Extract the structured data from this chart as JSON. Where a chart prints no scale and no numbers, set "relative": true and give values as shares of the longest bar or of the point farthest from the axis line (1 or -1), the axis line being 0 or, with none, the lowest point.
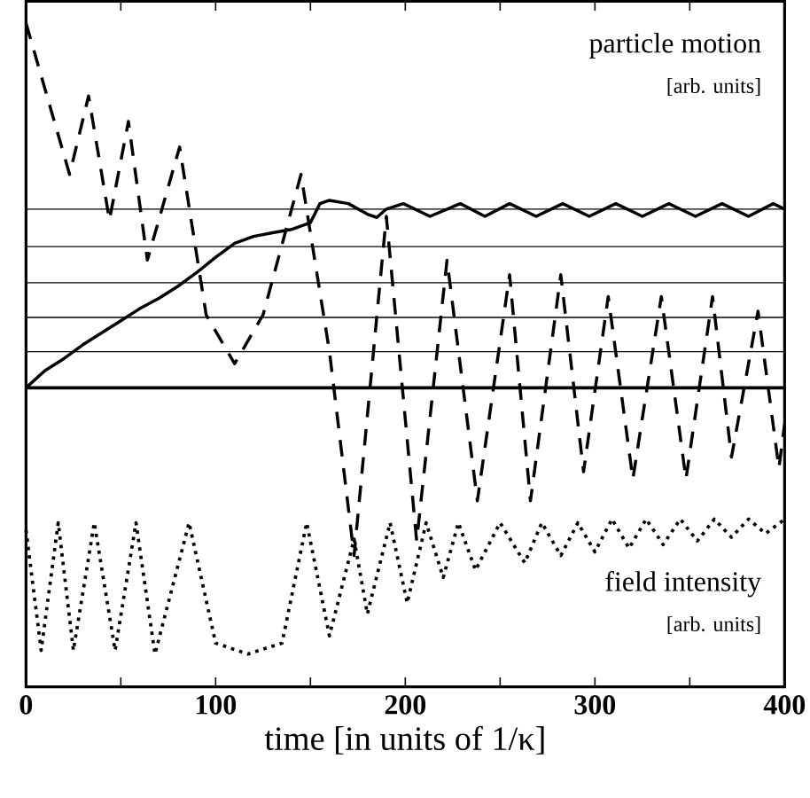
{
  "chart_data": {
    "type": "line",
    "relative": true,
    "xlabel": "time [in units of 1/κ]",
    "xlim": [
      0,
      400
    ],
    "xticks": [
      0,
      {
        "value": 50,
        "label": null
      },
      100,
      {
        "value": 150,
        "label": null
      },
      200,
      {
        "value": 250,
        "label": null
      },
      300,
      {
        "value": 350,
        "label": null
      },
      400
    ],
    "annotations": [
      "particle motion",
      "[arb. units]",
      "field intensity",
      "[arb. units]"
    ],
    "ref_lines": [
      {
        "axis": "y",
        "value": 0.49,
        "color": "#000000"
      },
      {
        "axis": "y",
        "value": 0.387,
        "color": "#000000"
      },
      {
        "axis": "y",
        "value": 0.288,
        "color": "#000000"
      },
      {
        "axis": "y",
        "value": 0.193,
        "color": "#000000"
      },
      {
        "axis": "y",
        "value": 0.099,
        "color": "#000000"
      }
    ],
    "marker": "none",
    "series": [
      {
        "color": "#000000",
        "line_style": "solid",
        "x": [
          0,
          10,
          20,
          30,
          40,
          50,
          60,
          70,
          80,
          90,
          100,
          110,
          120,
          130,
          140,
          150,
          155,
          160,
          170,
          180,
          185,
          190,
          199,
          213,
          229,
          242,
          255,
          269,
          283,
          297,
          311,
          325,
          339,
          353,
          367,
          381,
          394,
          400
        ],
        "values": [
          0,
          0.047,
          0.08,
          0.118,
          0.151,
          0.184,
          0.217,
          0.245,
          0.278,
          0.316,
          0.358,
          0.396,
          0.415,
          0.425,
          0.434,
          0.453,
          0.505,
          0.514,
          0.505,
          0.476,
          0.467,
          0.49,
          0.505,
          0.47,
          0.505,
          0.47,
          0.505,
          0.47,
          0.505,
          0.47,
          0.505,
          0.47,
          0.505,
          0.47,
          0.505,
          0.47,
          0.505,
          0.49
        ]
      },
      {
        "color": "#000000",
        "line_style": "dashed",
        "x": [
          0,
          23,
          33,
          44,
          54,
          64,
          81,
          95,
          110,
          125,
          145,
          160,
          173,
          190,
          206,
          222,
          238,
          255,
          266,
          282,
          294,
          307,
          320,
          335,
          348,
          362,
          372,
          386,
          397,
          400
        ],
        "values": [
          1,
          0.585,
          0.8,
          0.46,
          0.73,
          0.35,
          0.66,
          0.2,
          0.066,
          0.2,
          0.585,
          0.1,
          -0.46,
          0.47,
          -0.42,
          0.35,
          -0.31,
          0.31,
          -0.31,
          0.31,
          -0.23,
          0.25,
          -0.25,
          0.25,
          -0.25,
          0.25,
          -0.19,
          0.21,
          -0.22,
          -0.1
        ]
      },
      {
        "color": "#000000",
        "line_style": "dotted",
        "x": [
          0,
          8,
          17,
          25,
          36,
          47,
          58,
          68,
          86,
          100,
          117,
          135,
          148,
          160,
          173,
          180,
          192,
          201,
          211,
          220,
          228,
          237,
          250,
          263,
          272,
          282,
          291,
          300,
          309,
          318,
          327,
          336,
          345,
          354,
          363,
          372,
          381,
          390,
          400
        ],
        "values": [
          -0.39,
          -0.72,
          -0.37,
          -0.72,
          -0.37,
          -0.72,
          -0.37,
          -0.73,
          -0.37,
          -0.7,
          -0.73,
          -0.7,
          -0.37,
          -0.68,
          -0.415,
          -0.62,
          -0.37,
          -0.59,
          -0.37,
          -0.52,
          -0.37,
          -0.5,
          -0.37,
          -0.48,
          -0.37,
          -0.46,
          -0.37,
          -0.45,
          -0.36,
          -0.44,
          -0.36,
          -0.43,
          -0.36,
          -0.42,
          -0.36,
          -0.41,
          -0.36,
          -0.4,
          -0.36
        ]
      }
    ]
  }
}
